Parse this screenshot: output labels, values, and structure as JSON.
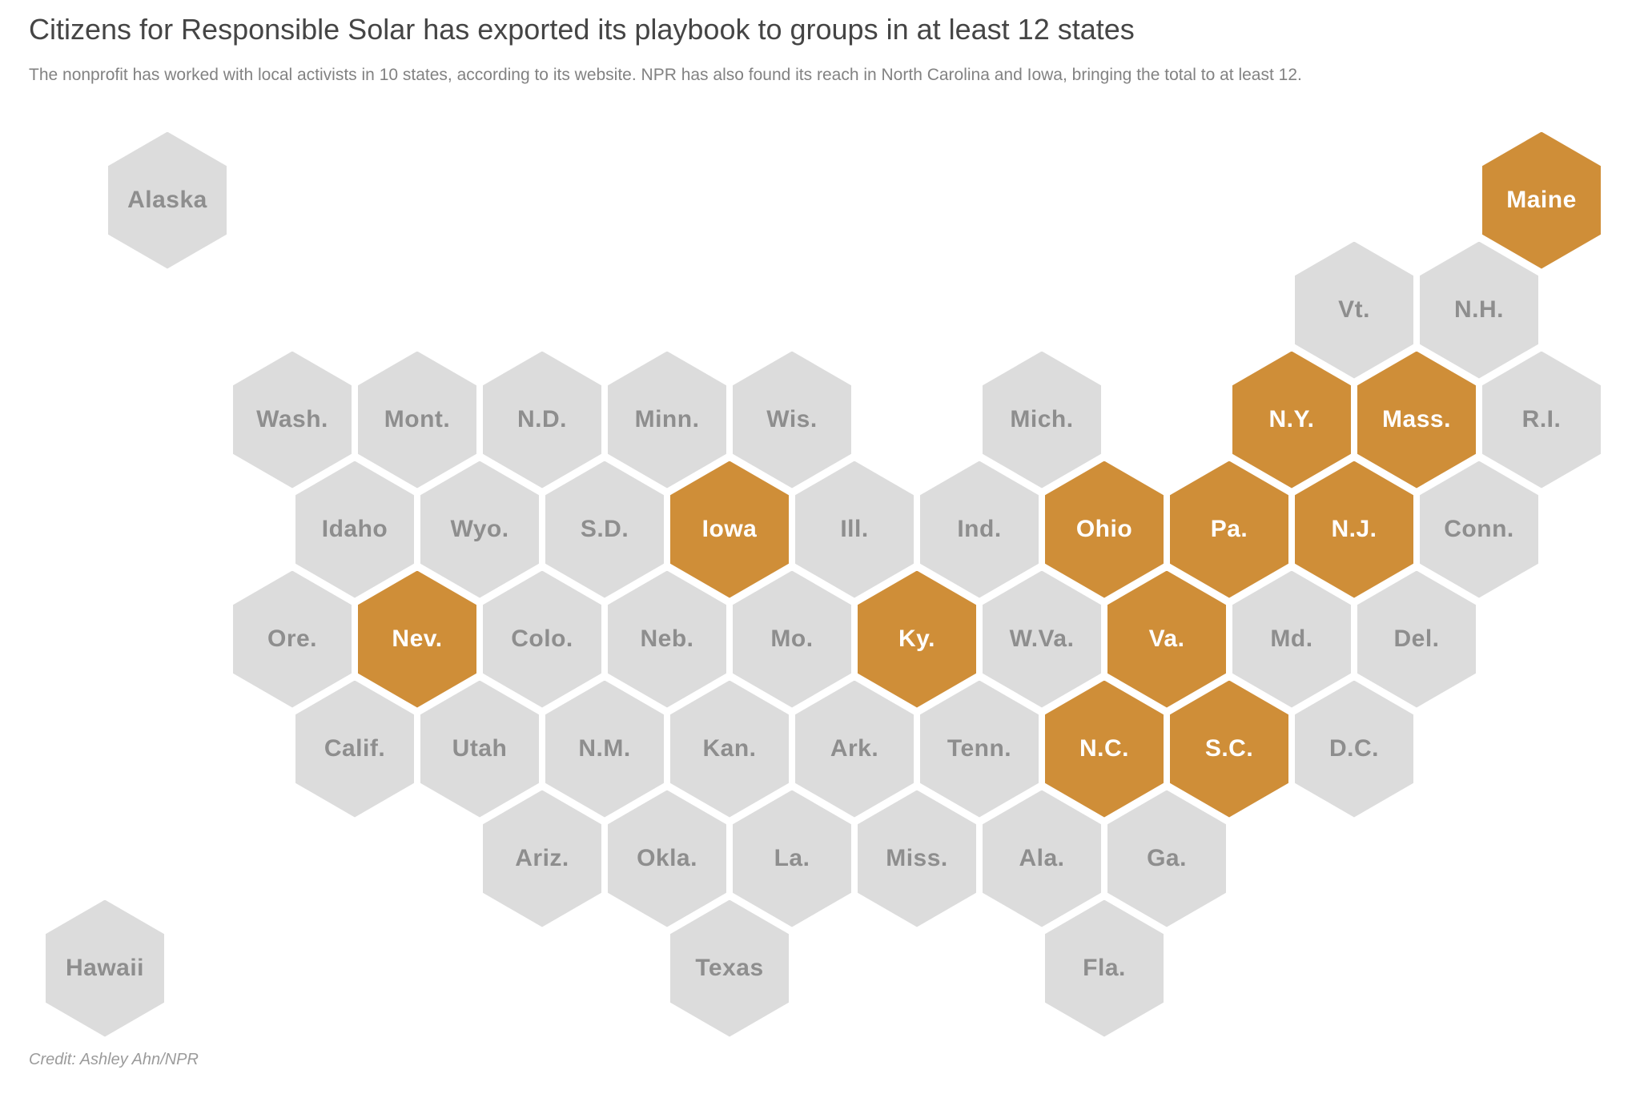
{
  "header": {
    "title": "Citizens for Responsible Solar has exported its playbook to groups in at least 12 states",
    "subtitle": "The nonprofit has worked with local activists in 10 states, according to its website. NPR has also found its reach in North Carolina and Iowa, bringing the total to at least 12."
  },
  "footer": {
    "credit": "Credit: Ashley Ahn/NPR"
  },
  "colors": {
    "background": "#ffffff",
    "highlight": "#cf8e38",
    "base": "#dcdcdc",
    "label_on_base": "#8e8e8e",
    "label_on_highlight": "#ffffff",
    "title": "#454545",
    "subtitle": "#828282",
    "credit": "#9b9b9b"
  },
  "chart_data": {
    "type": "heatmap",
    "subtype": "us-state-hex-cartogram",
    "title": "Citizens for Responsible Solar has exported its playbook to groups in at least 12 states",
    "subtitle": "The nonprofit has worked with local activists in 10 states, according to its website. NPR has also found its reach in North Carolina and Iowa, bringing the total to at least 12.",
    "legend": "none",
    "highlighted_count": 12,
    "highlighted_states": [
      "Maine",
      "N.Y.",
      "Mass.",
      "Iowa",
      "Ohio",
      "Pa.",
      "N.J.",
      "Nev.",
      "Ky.",
      "Va.",
      "N.C.",
      "S.C."
    ],
    "states": [
      {
        "id": "alaska",
        "label": "Alaska",
        "row": 0,
        "col": -1,
        "highlighted": false
      },
      {
        "id": "maine",
        "label": "Maine",
        "row": 0,
        "col": 10,
        "highlighted": true
      },
      {
        "id": "vt",
        "label": "Vt.",
        "row": 1,
        "col": 8.5,
        "highlighted": false
      },
      {
        "id": "nh",
        "label": "N.H.",
        "row": 1,
        "col": 9.5,
        "highlighted": false
      },
      {
        "id": "wash",
        "label": "Wash.",
        "row": 2,
        "col": 0,
        "highlighted": false
      },
      {
        "id": "mont",
        "label": "Mont.",
        "row": 2,
        "col": 1,
        "highlighted": false
      },
      {
        "id": "nd",
        "label": "N.D.",
        "row": 2,
        "col": 2,
        "highlighted": false
      },
      {
        "id": "minn",
        "label": "Minn.",
        "row": 2,
        "col": 3,
        "highlighted": false
      },
      {
        "id": "wis",
        "label": "Wis.",
        "row": 2,
        "col": 4,
        "highlighted": false
      },
      {
        "id": "mich",
        "label": "Mich.",
        "row": 2,
        "col": 6,
        "highlighted": false
      },
      {
        "id": "ny",
        "label": "N.Y.",
        "row": 2,
        "col": 8,
        "highlighted": true
      },
      {
        "id": "mass",
        "label": "Mass.",
        "row": 2,
        "col": 9,
        "highlighted": true
      },
      {
        "id": "ri",
        "label": "R.I.",
        "row": 2,
        "col": 10,
        "highlighted": false
      },
      {
        "id": "idaho",
        "label": "Idaho",
        "row": 3,
        "col": 0.5,
        "highlighted": false
      },
      {
        "id": "wyo",
        "label": "Wyo.",
        "row": 3,
        "col": 1.5,
        "highlighted": false
      },
      {
        "id": "sd",
        "label": "S.D.",
        "row": 3,
        "col": 2.5,
        "highlighted": false
      },
      {
        "id": "iowa",
        "label": "Iowa",
        "row": 3,
        "col": 3.5,
        "highlighted": true
      },
      {
        "id": "ill",
        "label": "Ill.",
        "row": 3,
        "col": 4.5,
        "highlighted": false
      },
      {
        "id": "ind",
        "label": "Ind.",
        "row": 3,
        "col": 5.5,
        "highlighted": false
      },
      {
        "id": "ohio",
        "label": "Ohio",
        "row": 3,
        "col": 6.5,
        "highlighted": true
      },
      {
        "id": "pa",
        "label": "Pa.",
        "row": 3,
        "col": 7.5,
        "highlighted": true
      },
      {
        "id": "nj",
        "label": "N.J.",
        "row": 3,
        "col": 8.5,
        "highlighted": true
      },
      {
        "id": "conn",
        "label": "Conn.",
        "row": 3,
        "col": 9.5,
        "highlighted": false
      },
      {
        "id": "ore",
        "label": "Ore.",
        "row": 4,
        "col": 0,
        "highlighted": false
      },
      {
        "id": "nev",
        "label": "Nev.",
        "row": 4,
        "col": 1,
        "highlighted": true
      },
      {
        "id": "colo",
        "label": "Colo.",
        "row": 4,
        "col": 2,
        "highlighted": false
      },
      {
        "id": "neb",
        "label": "Neb.",
        "row": 4,
        "col": 3,
        "highlighted": false
      },
      {
        "id": "mo",
        "label": "Mo.",
        "row": 4,
        "col": 4,
        "highlighted": false
      },
      {
        "id": "ky",
        "label": "Ky.",
        "row": 4,
        "col": 5,
        "highlighted": true
      },
      {
        "id": "wva",
        "label": "W.Va.",
        "row": 4,
        "col": 6,
        "highlighted": false
      },
      {
        "id": "va",
        "label": "Va.",
        "row": 4,
        "col": 7,
        "highlighted": true
      },
      {
        "id": "md",
        "label": "Md.",
        "row": 4,
        "col": 8,
        "highlighted": false
      },
      {
        "id": "del",
        "label": "Del.",
        "row": 4,
        "col": 9,
        "highlighted": false
      },
      {
        "id": "calif",
        "label": "Calif.",
        "row": 5,
        "col": 0.5,
        "highlighted": false
      },
      {
        "id": "utah",
        "label": "Utah",
        "row": 5,
        "col": 1.5,
        "highlighted": false
      },
      {
        "id": "nm",
        "label": "N.M.",
        "row": 5,
        "col": 2.5,
        "highlighted": false
      },
      {
        "id": "kan",
        "label": "Kan.",
        "row": 5,
        "col": 3.5,
        "highlighted": false
      },
      {
        "id": "ark",
        "label": "Ark.",
        "row": 5,
        "col": 4.5,
        "highlighted": false
      },
      {
        "id": "tenn",
        "label": "Tenn.",
        "row": 5,
        "col": 5.5,
        "highlighted": false
      },
      {
        "id": "nc",
        "label": "N.C.",
        "row": 5,
        "col": 6.5,
        "highlighted": true
      },
      {
        "id": "sc",
        "label": "S.C.",
        "row": 5,
        "col": 7.5,
        "highlighted": true
      },
      {
        "id": "dc",
        "label": "D.C.",
        "row": 5,
        "col": 8.5,
        "highlighted": false
      },
      {
        "id": "ariz",
        "label": "Ariz.",
        "row": 6,
        "col": 2,
        "highlighted": false
      },
      {
        "id": "okla",
        "label": "Okla.",
        "row": 6,
        "col": 3,
        "highlighted": false
      },
      {
        "id": "la",
        "label": "La.",
        "row": 6,
        "col": 4,
        "highlighted": false
      },
      {
        "id": "miss",
        "label": "Miss.",
        "row": 6,
        "col": 5,
        "highlighted": false
      },
      {
        "id": "ala",
        "label": "Ala.",
        "row": 6,
        "col": 6,
        "highlighted": false
      },
      {
        "id": "ga",
        "label": "Ga.",
        "row": 6,
        "col": 7,
        "highlighted": false
      },
      {
        "id": "hawaii",
        "label": "Hawaii",
        "row": 7,
        "col": -1.5,
        "highlighted": false
      },
      {
        "id": "texas",
        "label": "Texas",
        "row": 7,
        "col": 3.5,
        "highlighted": false
      },
      {
        "id": "fla",
        "label": "Fla.",
        "row": 7,
        "col": 6.5,
        "highlighted": false
      }
    ]
  }
}
